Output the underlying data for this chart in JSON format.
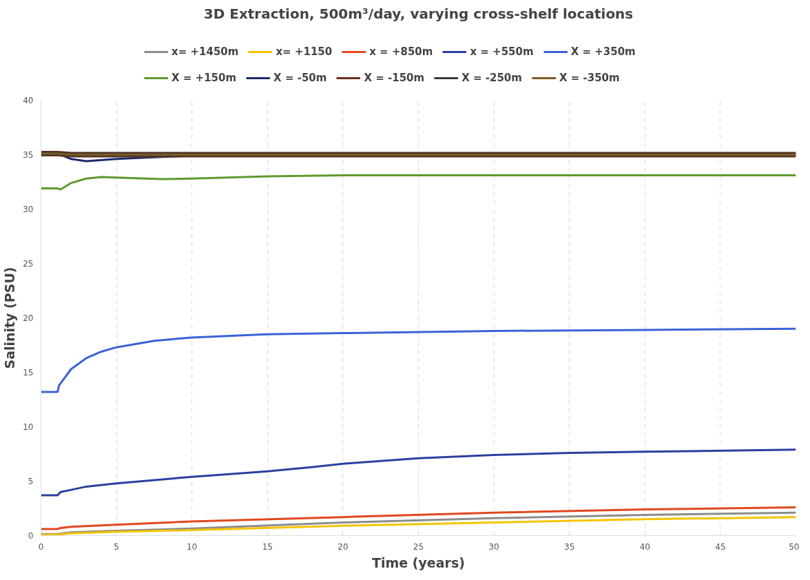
{
  "chart_data": {
    "type": "line",
    "title": "3D Extraction, 500m³/day, varying cross-shelf locations",
    "xlabel": "Time (years)",
    "ylabel": "Salinity (PSU)",
    "xlim": [
      0,
      50
    ],
    "ylim": [
      0,
      40
    ],
    "xticks": [
      0,
      5,
      10,
      15,
      20,
      25,
      30,
      35,
      40,
      45,
      50
    ],
    "yticks": [
      0,
      5,
      10,
      15,
      20,
      25,
      30,
      35,
      40
    ],
    "grid": "x",
    "legend": "top",
    "line_style": "solid",
    "series": [
      {
        "name": "x= +1450m",
        "color": "#8c8c8c",
        "x": [
          0,
          1.1,
          2,
          5,
          10,
          20,
          30,
          40,
          50
        ],
        "values": [
          0.15,
          0.15,
          0.3,
          0.45,
          0.65,
          1.2,
          1.6,
          1.9,
          2.1
        ]
      },
      {
        "name": "x= +1150",
        "color": "#f5c400",
        "x": [
          0,
          1.1,
          2,
          5,
          10,
          20,
          30,
          40,
          50
        ],
        "values": [
          0.1,
          0.1,
          0.2,
          0.35,
          0.5,
          0.9,
          1.2,
          1.5,
          1.7
        ]
      },
      {
        "name": "x = +850m",
        "color": "#e0481e",
        "x": [
          0,
          1.1,
          1.3,
          2,
          5,
          10,
          20,
          30,
          40,
          50
        ],
        "values": [
          0.6,
          0.6,
          0.7,
          0.8,
          1.0,
          1.3,
          1.7,
          2.1,
          2.4,
          2.6
        ]
      },
      {
        "name": "x = +550m",
        "color": "#2b3fa0",
        "x": [
          0,
          1.1,
          1.3,
          2,
          3,
          5,
          10,
          15,
          18,
          20,
          25,
          30,
          35,
          40,
          50
        ],
        "values": [
          3.7,
          3.7,
          4.0,
          4.2,
          4.5,
          4.8,
          5.4,
          5.9,
          6.3,
          6.6,
          7.1,
          7.4,
          7.6,
          7.7,
          7.9
        ]
      },
      {
        "name": "X = +350m",
        "color": "#3a62d8",
        "x": [
          0,
          1.1,
          1.2,
          2,
          3,
          4,
          5,
          7.5,
          10,
          15,
          20,
          30,
          40,
          50
        ],
        "values": [
          13.2,
          13.2,
          13.8,
          15.3,
          16.3,
          16.9,
          17.3,
          17.9,
          18.2,
          18.5,
          18.6,
          18.8,
          18.9,
          19.0
        ]
      },
      {
        "name": "X = +150m",
        "color": "#5e9a2e",
        "x": [
          0,
          1.1,
          1.3,
          2,
          3,
          4,
          5,
          8,
          10,
          15,
          20,
          30,
          40,
          50
        ],
        "values": [
          31.9,
          31.9,
          31.8,
          32.4,
          32.8,
          32.95,
          32.9,
          32.75,
          32.8,
          33.0,
          33.1,
          33.1,
          33.1,
          33.1
        ]
      },
      {
        "name": "X = -50m",
        "color": "#1c2a6b",
        "x": [
          0,
          1.1,
          2,
          3,
          5,
          8,
          10
        ],
        "values": [
          35.1,
          35.1,
          34.6,
          34.4,
          34.6,
          34.8,
          34.9
        ]
      },
      {
        "name": "X = -150m",
        "color": "#6b2e1e",
        "x": [
          0,
          1.1,
          2,
          5,
          50
        ],
        "values": [
          35.1,
          35.1,
          35.0,
          35.0,
          35.0
        ]
      },
      {
        "name": "X = -250m",
        "color": "#3a3a3a",
        "x": [
          0,
          1.1,
          2,
          5,
          50
        ],
        "values": [
          35.1,
          35.1,
          35.0,
          35.0,
          35.0
        ]
      },
      {
        "name": "X = -350m",
        "color": "#7a5c1e",
        "x": [
          0,
          1.1,
          2,
          5,
          50
        ],
        "values": [
          35.1,
          35.1,
          35.0,
          35.0,
          35.0
        ]
      }
    ]
  }
}
